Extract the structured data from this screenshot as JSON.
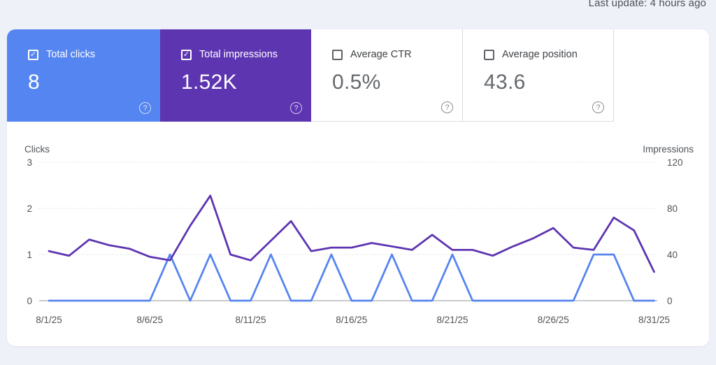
{
  "header": {
    "last_update": "Last update: 4 hours ago"
  },
  "cards": [
    {
      "label": "Total clicks",
      "value": "8",
      "checked": true,
      "style": "blue"
    },
    {
      "label": "Total impressions",
      "value": "1.52K",
      "checked": true,
      "style": "purple"
    },
    {
      "label": "Average CTR",
      "value": "0.5%",
      "checked": false,
      "style": "white"
    },
    {
      "label": "Average position",
      "value": "43.6",
      "checked": false,
      "style": "white"
    }
  ],
  "check_glyph": "✓",
  "help_glyph": "?",
  "chart_data": {
    "type": "line",
    "dates": [
      "8/1/25",
      "8/2/25",
      "8/3/25",
      "8/4/25",
      "8/5/25",
      "8/6/25",
      "8/7/25",
      "8/8/25",
      "8/9/25",
      "8/10/25",
      "8/11/25",
      "8/12/25",
      "8/13/25",
      "8/14/25",
      "8/15/25",
      "8/16/25",
      "8/17/25",
      "8/18/25",
      "8/19/25",
      "8/20/25",
      "8/21/25",
      "8/22/25",
      "8/23/25",
      "8/24/25",
      "8/25/25",
      "8/26/25",
      "8/27/25",
      "8/28/25",
      "8/29/25",
      "8/30/25",
      "8/31/25"
    ],
    "x_tick_labels": [
      "8/1/25",
      "8/6/25",
      "8/11/25",
      "8/16/25",
      "8/21/25",
      "8/26/25",
      "8/31/25"
    ],
    "x_tick_every": 5,
    "series": [
      {
        "name": "Clicks",
        "axis": "left",
        "color": "#5685f0",
        "values": [
          0,
          0,
          0,
          0,
          0,
          0,
          1,
          0,
          1,
          0,
          0,
          1,
          0,
          0,
          1,
          0,
          0,
          1,
          0,
          0,
          1,
          0,
          0,
          0,
          0,
          0,
          0,
          1,
          1,
          0,
          0
        ]
      },
      {
        "name": "Impressions",
        "axis": "right",
        "color": "#5e35b1",
        "values": [
          43,
          39,
          53,
          48,
          45,
          38,
          35,
          65,
          91,
          40,
          35,
          52,
          69,
          43,
          46,
          46,
          50,
          47,
          44,
          57,
          44,
          44,
          39,
          47,
          54,
          63,
          46,
          44,
          72,
          61,
          25
        ]
      }
    ],
    "left_axis": {
      "label": "Clicks",
      "ticks": [
        0,
        1,
        2,
        3
      ],
      "range": [
        0,
        3
      ]
    },
    "right_axis": {
      "label": "Impressions",
      "ticks": [
        0,
        40,
        80,
        120
      ],
      "range": [
        0,
        120
      ]
    },
    "grid": "dotted-horizontal",
    "legend_position": "none"
  },
  "colors": {
    "clicks_blue": "#5685f0",
    "impressions_purple": "#5e35b1",
    "card_blue_bg": "#5585f0",
    "card_purple_bg": "#5e35b1",
    "card_border": "#dadce0",
    "page_background": "#eef1f8",
    "panel_background": "#ffffff",
    "chart_text": "#515458",
    "gridline": "#d7dadd",
    "axis_line": "#a8abb0"
  }
}
